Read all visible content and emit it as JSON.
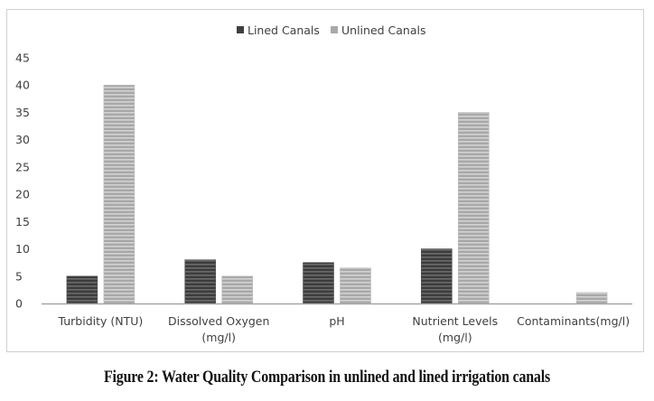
{
  "chart_data": {
    "type": "bar",
    "title": "",
    "xlabel": "",
    "ylabel": "",
    "ylim": [
      0,
      45
    ],
    "yticks": [
      "0",
      "5",
      "10",
      "15",
      "20",
      "25",
      "30",
      "35",
      "40",
      "45"
    ],
    "grid": false,
    "legend_position": "top",
    "categories": [
      [
        "Turbidity (NTU)"
      ],
      [
        "Dissolved Oxygen",
        "(mg/l)"
      ],
      [
        "pH"
      ],
      [
        "Nutrient Levels",
        "(mg/l)"
      ],
      [
        "Contaminants(mg/l)"
      ]
    ],
    "series": [
      {
        "name": "Lined Canals",
        "color": "#4a4a4a",
        "values": [
          5,
          8,
          7.5,
          10,
          0
        ]
      },
      {
        "name": "Unlined Canals",
        "color": "#b4b4b4",
        "values": [
          40,
          5,
          6.5,
          35,
          2
        ]
      }
    ]
  },
  "caption": "Figure 2: Water Quality Comparison in unlined and lined irrigation canals"
}
